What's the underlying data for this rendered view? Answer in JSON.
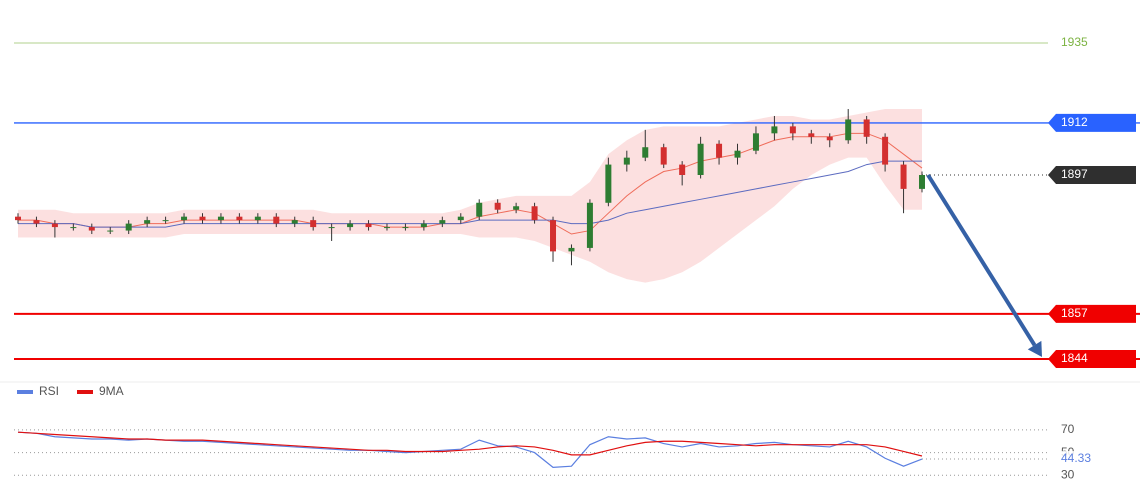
{
  "chart_data": {
    "type": "candlestick",
    "ylim": [
      1839.4,
      1947.4
    ],
    "open": [
      1885,
      1884,
      1883,
      1882,
      1882,
      1881,
      1881,
      1883,
      1884,
      1884,
      1885,
      1884,
      1885,
      1884,
      1885,
      1883,
      1884,
      1882,
      1882,
      1883,
      1882,
      1882,
      1882,
      1883,
      1884,
      1885,
      1889,
      1887,
      1888,
      1884,
      1875,
      1876,
      1889,
      1900,
      1902,
      1905,
      1900,
      1897,
      1906,
      1902,
      1904,
      1909,
      1911,
      1909,
      1908,
      1907,
      1913,
      1908,
      1900,
      1893
    ],
    "close": [
      1884,
      1883,
      1882,
      1882,
      1881,
      1881,
      1883,
      1884,
      1884,
      1885,
      1884,
      1885,
      1884,
      1885,
      1883,
      1884,
      1882,
      1882,
      1883,
      1882,
      1882,
      1882,
      1883,
      1884,
      1885,
      1889,
      1887,
      1888,
      1884,
      1875,
      1876,
      1889,
      1900,
      1902,
      1905,
      1900,
      1897,
      1906,
      1902,
      1904,
      1909,
      1911,
      1909,
      1908,
      1907,
      1913,
      1908,
      1900,
      1893,
      1897
    ],
    "high": [
      1886,
      1885,
      1884,
      1883,
      1883,
      1882,
      1884,
      1885,
      1885,
      1886,
      1886,
      1886,
      1886,
      1886,
      1886,
      1885,
      1885,
      1883,
      1884,
      1884,
      1883,
      1883,
      1884,
      1885,
      1886,
      1890,
      1890,
      1889,
      1889,
      1885,
      1877,
      1890,
      1902,
      1904,
      1910,
      1906,
      1901,
      1908,
      1907,
      1906,
      1911,
      1914,
      1912,
      1910,
      1909,
      1916,
      1914,
      1909,
      1901,
      1898
    ],
    "low": [
      1883,
      1882,
      1879,
      1881,
      1880,
      1880,
      1880,
      1882,
      1883,
      1883,
      1883,
      1883,
      1883,
      1883,
      1882,
      1882,
      1881,
      1878,
      1881,
      1881,
      1881,
      1881,
      1881,
      1882,
      1883,
      1884,
      1886,
      1886,
      1883,
      1872,
      1871,
      1875,
      1888,
      1898,
      1901,
      1899,
      1894,
      1896,
      1900,
      1900,
      1903,
      1907,
      1907,
      1906,
      1905,
      1906,
      1906,
      1898,
      1886,
      1892
    ],
    "up_color": "#2e7d32",
    "down_color": "#d32f2f",
    "fast_ma": {
      "color": "#ef6c5a",
      "values": [
        1884,
        1884,
        1883,
        1883,
        1882,
        1882,
        1882,
        1883,
        1883,
        1884,
        1884,
        1884,
        1884,
        1884,
        1884,
        1884,
        1883,
        1883,
        1883,
        1883,
        1882,
        1882,
        1882,
        1883,
        1883,
        1885,
        1886,
        1887,
        1886,
        1883,
        1880,
        1881,
        1886,
        1891,
        1895,
        1898,
        1899,
        1901,
        1902,
        1903,
        1905,
        1907,
        1908,
        1908,
        1908,
        1909,
        1909,
        1907,
        1903,
        1899
      ]
    },
    "slow_ma": {
      "color": "#5c6bc0",
      "values": [
        1883,
        1883,
        1883,
        1883,
        1882,
        1882,
        1882,
        1882,
        1882,
        1883,
        1883,
        1883,
        1883,
        1883,
        1883,
        1883,
        1883,
        1883,
        1883,
        1883,
        1883,
        1883,
        1883,
        1883,
        1883,
        1884,
        1884,
        1884,
        1884,
        1884,
        1883,
        1883,
        1884,
        1886,
        1887,
        1888,
        1889,
        1890,
        1891,
        1892,
        1893,
        1894,
        1895,
        1896,
        1897,
        1898,
        1900,
        1901,
        1901,
        1901
      ]
    },
    "band": {
      "color": "#f6a5a5",
      "upper": [
        1887,
        1887,
        1887,
        1886,
        1886,
        1886,
        1886,
        1886,
        1886,
        1887,
        1887,
        1887,
        1887,
        1887,
        1887,
        1887,
        1887,
        1886,
        1886,
        1886,
        1886,
        1886,
        1886,
        1886,
        1887,
        1889,
        1890,
        1891,
        1891,
        1891,
        1891,
        1895,
        1903,
        1907,
        1910,
        1911,
        1911,
        1911,
        1911,
        1912,
        1913,
        1914,
        1914,
        1913,
        1913,
        1914,
        1915,
        1916,
        1916,
        1916
      ],
      "lower": [
        1879,
        1879,
        1879,
        1879,
        1879,
        1879,
        1879,
        1879,
        1879,
        1880,
        1880,
        1880,
        1880,
        1880,
        1880,
        1880,
        1880,
        1880,
        1880,
        1880,
        1880,
        1880,
        1880,
        1880,
        1880,
        1879,
        1879,
        1879,
        1878,
        1876,
        1874,
        1872,
        1869,
        1867,
        1866,
        1867,
        1869,
        1872,
        1876,
        1880,
        1884,
        1888,
        1893,
        1897,
        1900,
        1902,
        1902,
        1894,
        1887,
        1887
      ]
    },
    "levels": [
      {
        "value": 1935,
        "color": "#7cb342",
        "style": "text"
      },
      {
        "value": 1912,
        "color": "#2962ff",
        "style": "box"
      },
      {
        "value": 1897,
        "color": "#2f2f2f",
        "style": "dotted"
      },
      {
        "value": 1857,
        "color": "#f00000",
        "style": "box"
      },
      {
        "value": 1844,
        "color": "#f00000",
        "style": "box"
      }
    ],
    "arrow_color": "#3561a6",
    "rsi": {
      "ylim": [
        17,
        92
      ],
      "yticks": [
        30,
        50,
        70
      ],
      "series": [
        {
          "name": "RSI",
          "color": "#5b7fe0",
          "values": [
            68,
            67,
            64,
            63,
            62,
            62,
            61,
            62,
            61,
            60,
            60,
            59,
            58,
            57,
            56,
            55,
            54,
            53,
            52,
            52,
            51,
            50,
            51,
            52,
            53,
            61,
            56,
            55,
            50,
            37,
            38,
            57,
            64,
            62,
            63,
            58,
            55,
            58,
            55,
            56,
            58,
            59,
            57,
            56,
            55,
            60,
            55,
            45,
            38,
            44.33
          ]
        },
        {
          "name": "9MA",
          "color": "#e01010",
          "values": [
            68,
            67,
            66,
            65,
            64,
            63,
            62,
            62,
            61,
            61,
            61,
            60,
            59,
            58,
            57,
            56,
            55,
            54,
            53,
            52,
            52,
            51,
            51,
            51,
            52,
            53,
            55,
            56,
            55,
            52,
            48,
            48,
            52,
            56,
            59,
            60,
            60,
            59,
            58,
            57,
            56,
            57,
            57,
            57,
            57,
            57,
            57,
            55,
            51,
            47
          ]
        }
      ],
      "current_label": "44.33"
    }
  }
}
